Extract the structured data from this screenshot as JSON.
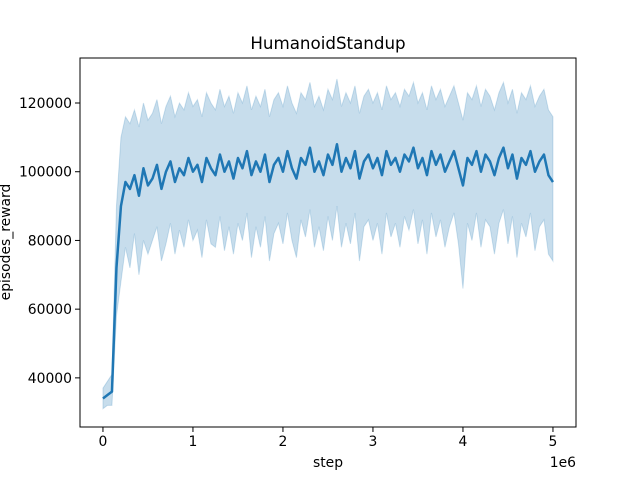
{
  "chart_data": {
    "type": "line",
    "title": "HumanoidStandup",
    "xlabel": "step",
    "ylabel": "episodes_reward",
    "x_offset_label": "1e6",
    "xlim": [
      -255000,
      5256000
    ],
    "ylim": [
      25700,
      133100
    ],
    "xticks": [
      {
        "value": 0,
        "label": "0"
      },
      {
        "value": 1000000,
        "label": "1"
      },
      {
        "value": 2000000,
        "label": "2"
      },
      {
        "value": 3000000,
        "label": "3"
      },
      {
        "value": 4000000,
        "label": "4"
      },
      {
        "value": 5000000,
        "label": "5"
      }
    ],
    "yticks": [
      40000,
      60000,
      80000,
      100000,
      120000
    ],
    "x": [
      0,
      50000,
      100000,
      150000,
      200000,
      250000,
      300000,
      350000,
      400000,
      450000,
      500000,
      550000,
      600000,
      650000,
      700000,
      750000,
      800000,
      850000,
      900000,
      950000,
      1000000,
      1050000,
      1100000,
      1150000,
      1200000,
      1250000,
      1300000,
      1350000,
      1400000,
      1450000,
      1500000,
      1550000,
      1600000,
      1650000,
      1700000,
      1750000,
      1800000,
      1850000,
      1900000,
      1950000,
      2000000,
      2050000,
      2100000,
      2150000,
      2200000,
      2250000,
      2300000,
      2350000,
      2400000,
      2450000,
      2500000,
      2550000,
      2600000,
      2650000,
      2700000,
      2750000,
      2800000,
      2850000,
      2900000,
      2950000,
      3000000,
      3050000,
      3100000,
      3150000,
      3200000,
      3250000,
      3300000,
      3350000,
      3400000,
      3450000,
      3500000,
      3550000,
      3600000,
      3650000,
      3700000,
      3750000,
      3800000,
      3850000,
      3900000,
      3950000,
      4000000,
      4050000,
      4100000,
      4150000,
      4200000,
      4250000,
      4300000,
      4350000,
      4400000,
      4450000,
      4500000,
      4550000,
      4600000,
      4650000,
      4700000,
      4750000,
      4800000,
      4850000,
      4900000,
      4950000,
      5000000
    ],
    "series": [
      {
        "color": "#1f77b4",
        "values": [
          34000,
          35000,
          36000,
          72000,
          90000,
          97000,
          95000,
          99000,
          93000,
          101000,
          96000,
          98000,
          102000,
          95000,
          100000,
          103000,
          97000,
          101000,
          99000,
          104000,
          100000,
          102000,
          97000,
          104000,
          101000,
          99000,
          105000,
          100000,
          103000,
          98000,
          104000,
          101000,
          106000,
          99000,
          103000,
          100000,
          105000,
          97000,
          102000,
          104000,
          100000,
          106000,
          101000,
          98000,
          104000,
          102000,
          107000,
          100000,
          103000,
          99000,
          105000,
          102000,
          108000,
          100000,
          104000,
          101000,
          106000,
          98000,
          103000,
          105000,
          101000,
          104000,
          99000,
          106000,
          102000,
          104000,
          100000,
          105000,
          103000,
          107000,
          101000,
          104000,
          99000,
          106000,
          102000,
          105000,
          100000,
          103000,
          106000,
          101000,
          96000,
          104000,
          102000,
          106000,
          100000,
          105000,
          103000,
          99000,
          104000,
          107000,
          101000,
          105000,
          98000,
          104000,
          102000,
          106000,
          100000,
          103000,
          105000,
          99000,
          97000
        ],
        "lower": [
          31000,
          32000,
          32000,
          58000,
          68000,
          78000,
          72000,
          82000,
          70000,
          80000,
          76000,
          80000,
          84000,
          74000,
          79000,
          85000,
          76000,
          83000,
          78000,
          86000,
          80000,
          83000,
          75000,
          86000,
          79000,
          78000,
          87000,
          77000,
          84000,
          76000,
          85000,
          80000,
          88000,
          75000,
          84000,
          78000,
          87000,
          74000,
          82000,
          85000,
          79000,
          88000,
          80000,
          75000,
          86000,
          81000,
          89000,
          78000,
          84000,
          77000,
          87000,
          80000,
          90000,
          78000,
          85000,
          79000,
          88000,
          74000,
          84000,
          86000,
          80000,
          85000,
          76000,
          88000,
          81000,
          85000,
          78000,
          87000,
          83000,
          89000,
          79000,
          86000,
          76000,
          88000,
          81000,
          86000,
          78000,
          84000,
          88000,
          79000,
          66000,
          85000,
          80000,
          88000,
          78000,
          86000,
          84000,
          76000,
          85000,
          89000,
          79000,
          87000,
          75000,
          85000,
          81000,
          88000,
          77000,
          84000,
          86000,
          76000,
          74000
        ],
        "upper": [
          37000,
          39000,
          41000,
          90000,
          110000,
          116000,
          114000,
          118000,
          113000,
          120000,
          115000,
          117000,
          121000,
          114000,
          119000,
          122000,
          116000,
          120000,
          118000,
          123000,
          119000,
          121000,
          116000,
          123000,
          120000,
          118000,
          124000,
          119000,
          122000,
          117000,
          123000,
          120000,
          125000,
          118000,
          122000,
          119000,
          124000,
          116000,
          121000,
          123000,
          119000,
          125000,
          120000,
          117000,
          123000,
          121000,
          126000,
          119000,
          122000,
          118000,
          124000,
          121000,
          127000,
          119000,
          123000,
          120000,
          125000,
          117000,
          122000,
          124000,
          120000,
          123000,
          118000,
          125000,
          121000,
          123000,
          119000,
          124000,
          122000,
          126000,
          120000,
          123000,
          118000,
          125000,
          121000,
          124000,
          119000,
          122000,
          125000,
          120000,
          115000,
          123000,
          121000,
          125000,
          119000,
          124000,
          122000,
          118000,
          123000,
          126000,
          120000,
          124000,
          117000,
          123000,
          121000,
          125000,
          119000,
          122000,
          124000,
          118000,
          116000
        ]
      }
    ]
  }
}
